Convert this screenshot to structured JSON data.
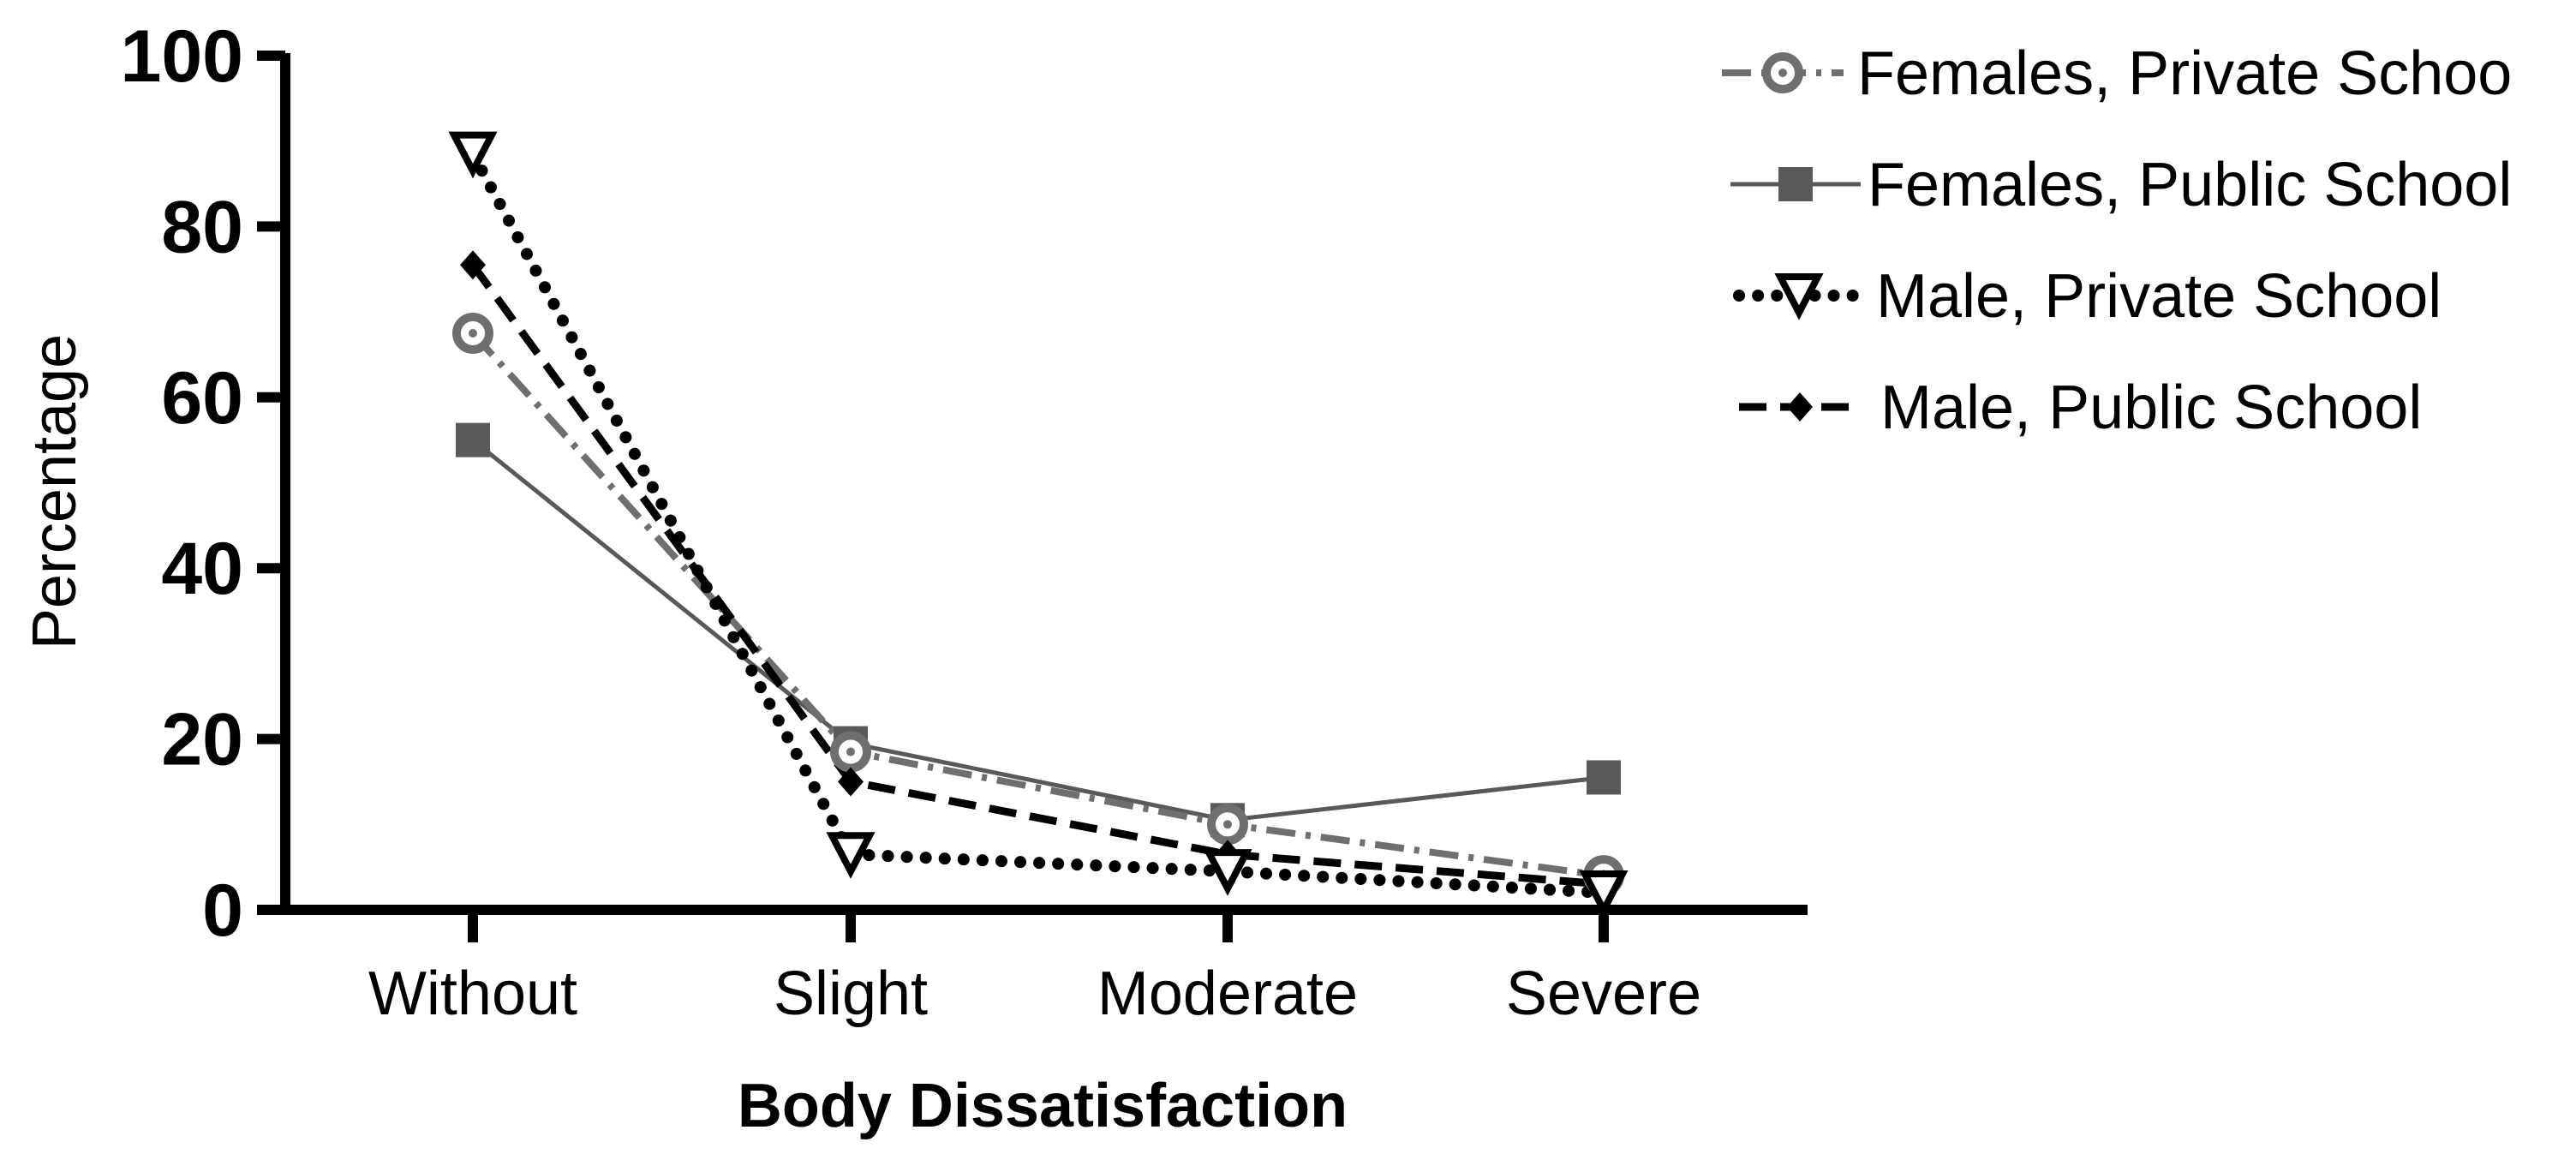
{
  "chart_data": {
    "type": "line",
    "title": "",
    "xlabel": "Body Dissatisfaction",
    "ylabel": "Percentage",
    "categories": [
      "Without",
      "Slight",
      "Moderate",
      "Severe"
    ],
    "ylim": [
      0,
      100
    ],
    "yticks": [
      "0",
      "20",
      "40",
      "60",
      "80",
      "100"
    ],
    "grid": false,
    "legend_position": "top-right",
    "series": [
      {
        "name": "Females, Private Schoo",
        "values": [
          67.5,
          18.5,
          10,
          4
        ],
        "color": "#6f6f6f",
        "marker": "circle-dot",
        "line_style": "dash-dot"
      },
      {
        "name": "Females, Public School",
        "values": [
          55,
          19.5,
          10.5,
          15.5
        ],
        "color": "#595959",
        "marker": "square",
        "line_style": "solid"
      },
      {
        "name": "Male, Private School",
        "values": [
          88.5,
          6.5,
          4.5,
          2
        ],
        "color": "#000000",
        "marker": "triangle-down-open",
        "line_style": "dotted"
      },
      {
        "name": "Male, Public School",
        "values": [
          75.5,
          15,
          6.5,
          3
        ],
        "color": "#000000",
        "marker": "diamond",
        "line_style": "dashed"
      }
    ]
  }
}
